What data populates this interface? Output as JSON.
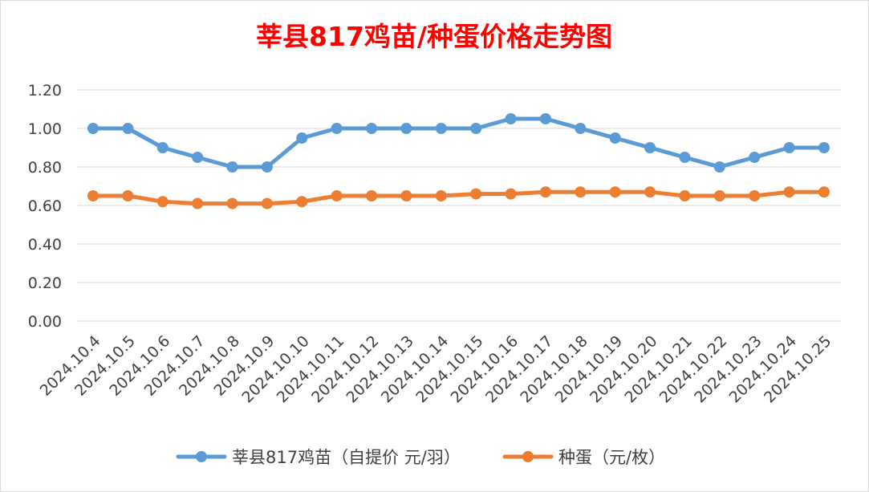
{
  "chart_data": {
    "type": "line",
    "title": "莘县817鸡苗/种蛋价格走势图",
    "xlabel": "",
    "ylabel": "",
    "ylim": [
      0,
      1.2
    ],
    "y_ticks": [
      "0.00",
      "0.20",
      "0.40",
      "0.60",
      "0.80",
      "1.00",
      "1.20"
    ],
    "grid": true,
    "legend_position": "bottom",
    "categories": [
      "2024.10.4",
      "2024.10.5",
      "2024.10.6",
      "2024.10.7",
      "2024.10.8",
      "2024.10.9",
      "2024.10.10",
      "2024.10.11",
      "2024.10.12",
      "2024.10.13",
      "2024.10.14",
      "2024.10.15",
      "2024.10.16",
      "2024.10.17",
      "2024.10.18",
      "2024.10.19",
      "2024.10.20",
      "2024.10.21",
      "2024.10.22",
      "2024.10.23",
      "2024.10.24",
      "2024.10.25"
    ],
    "series": [
      {
        "name": "莘县817鸡苗（自提价 元/羽）",
        "color": "#5b9bd5",
        "values": [
          1.0,
          1.0,
          0.9,
          0.85,
          0.8,
          0.8,
          0.95,
          1.0,
          1.0,
          1.0,
          1.0,
          1.0,
          1.05,
          1.05,
          1.0,
          0.95,
          0.9,
          0.85,
          0.8,
          0.85,
          0.9,
          0.9
        ]
      },
      {
        "name": "种蛋（元/枚）",
        "color": "#ed7d31",
        "values": [
          0.65,
          0.65,
          0.62,
          0.61,
          0.61,
          0.61,
          0.62,
          0.65,
          0.65,
          0.65,
          0.65,
          0.66,
          0.66,
          0.67,
          0.67,
          0.67,
          0.67,
          0.65,
          0.65,
          0.65,
          0.67,
          0.67
        ]
      }
    ]
  }
}
